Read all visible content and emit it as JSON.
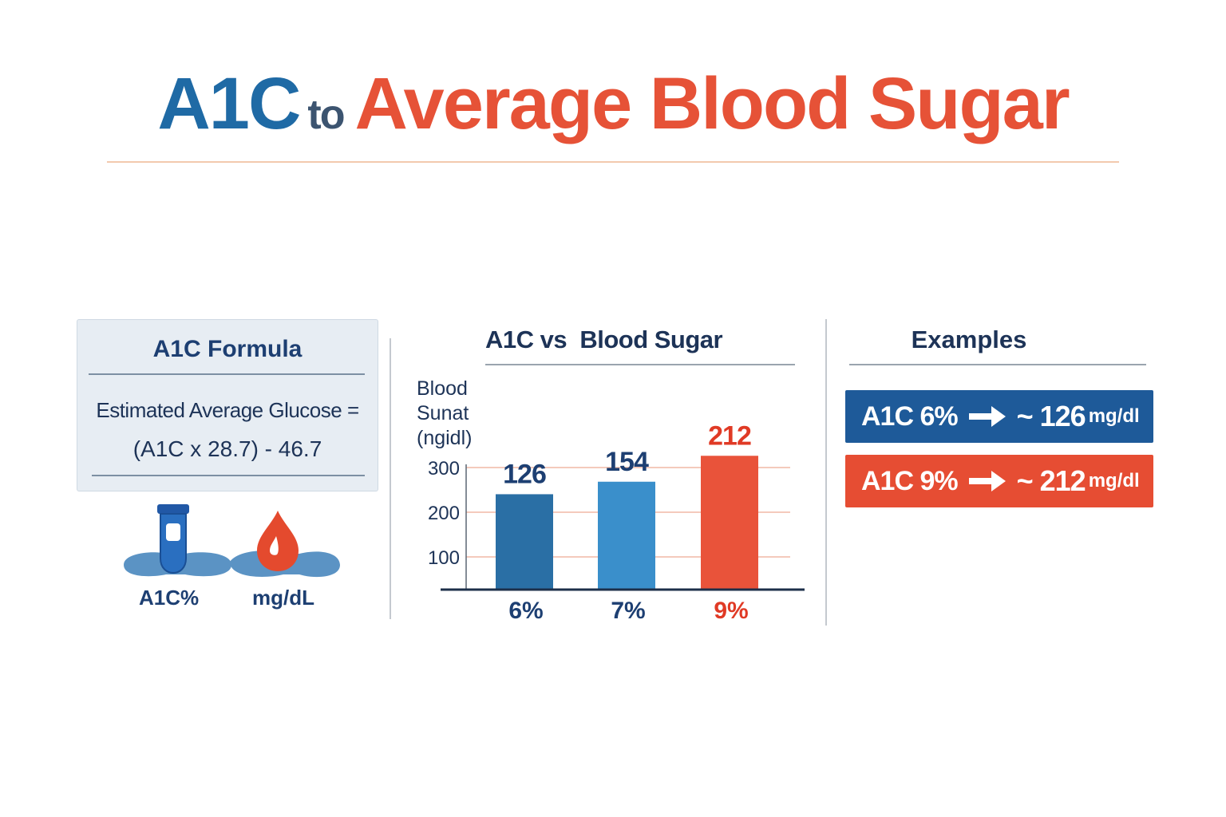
{
  "header": {
    "title_part1": "A1C",
    "title_part2": "to",
    "title_part3": "Average Blood Sugar",
    "colors": {
      "blue": "#1f6aa5",
      "dark": "#3c5470",
      "red": "#e65237"
    }
  },
  "formula": {
    "title": "A1C Formula",
    "line1": "Estimated Average Glucose =",
    "line2": "(A1C x 28.7) - 46.7",
    "icons": [
      {
        "icon": "test-tube-icon",
        "label": "A1C%"
      },
      {
        "icon": "blood-drop-icon",
        "label": "mg/dL"
      }
    ]
  },
  "chart_data": {
    "type": "bar",
    "title": "A1C vs  Blood Sugar",
    "ylabel": "Blood\nSunat\n(ngidl)",
    "categories": [
      "6%",
      "7%",
      "9%"
    ],
    "values": [
      126,
      154,
      212
    ],
    "value_labels": [
      "126",
      "154",
      "212"
    ],
    "yticks": [
      100,
      200,
      300
    ],
    "bar_colors": [
      "#2a6fa5",
      "#3a8fcb",
      "#e9533a"
    ],
    "label_colors": [
      "#1d3f72",
      "#1d3f72",
      "#e03a25"
    ],
    "grid": true
  },
  "examples": {
    "title": "Examples",
    "items": [
      {
        "a1c": "A1C 6%",
        "value": "~ 126",
        "unit": "mg/dl",
        "color": "#1e5a99"
      },
      {
        "a1c": "A1C 9%",
        "value": "~ 212",
        "unit": "mg/dl",
        "color": "#e64d33"
      }
    ]
  }
}
